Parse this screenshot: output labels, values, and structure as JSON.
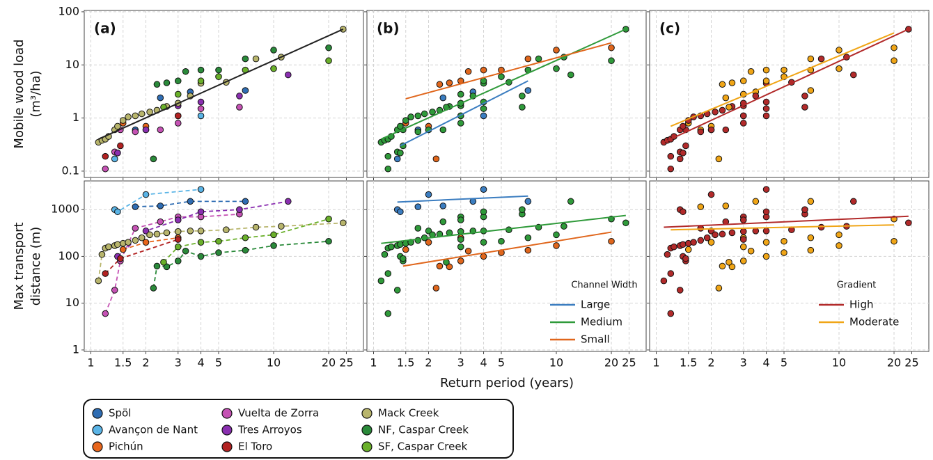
{
  "chart_data": {
    "type": "scatter",
    "x_label": "Return period (years)",
    "log_x": true,
    "xlim": [
      0.92,
      31
    ],
    "xticks": [
      1,
      1.5,
      2,
      3,
      4,
      5,
      10,
      20,
      25
    ],
    "grid": true,
    "rows": [
      {
        "y_label": [
          "Mobile wood load",
          "(m³/ha)"
        ],
        "log_y": true,
        "ylim": [
          0.076,
          106
        ],
        "yticks": [
          0.1,
          1,
          10,
          100
        ]
      },
      {
        "y_label": [
          "Max transport",
          "distance (m)"
        ],
        "log_y": true,
        "ylim": [
          0.93,
          4100
        ],
        "yticks": [
          1,
          10,
          100,
          1000
        ]
      }
    ],
    "series": [
      {
        "name": "Spöl",
        "color": "#2f6db3",
        "width": "Large",
        "gradient": "Moderate",
        "x": [
          1.75,
          2.4,
          3.5,
          7
        ],
        "load": [
          0.6,
          2.4,
          3.1,
          3.3
        ],
        "distance": [
          1150,
          1200,
          1500,
          1500
        ]
      },
      {
        "name": "Avançon de Nant",
        "color": "#5ab4e6",
        "width": "Large",
        "gradient": "High",
        "x": [
          1.35,
          1.4,
          2,
          4
        ],
        "load": [
          0.17,
          0.22,
          0.6,
          1.1
        ],
        "distance": [
          1000,
          900,
          2100,
          2700
        ]
      },
      {
        "name": "Pichún",
        "color": "#e8661c",
        "width": "Small",
        "gradient": "Moderate",
        "x": [
          1.5,
          2,
          3
        ],
        "load": [
          0.8,
          0.7,
          1.1
        ],
        "distance": [
          140,
          200,
          250
        ]
      },
      {
        "name": "Vuelta de Zorra",
        "color": "#c552b4",
        "width": "Medium",
        "gradient": "High",
        "x": [
          1.2,
          1.35,
          1.45,
          1.75,
          2.4,
          3,
          4,
          6.5
        ],
        "load": [
          0.11,
          0.23,
          0.6,
          0.55,
          0.6,
          0.8,
          1.5,
          1.6
        ],
        "distance": [
          6,
          19,
          80,
          400,
          550,
          700,
          700,
          800
        ]
      },
      {
        "name": "Tres Arroyos",
        "color": "#8a2fb0",
        "width": "Medium",
        "gradient": "High",
        "x": [
          1.4,
          2,
          3,
          4,
          6.5,
          12
        ],
        "load": [
          0.22,
          0.6,
          1.7,
          2.0,
          2.6,
          6.5
        ],
        "distance": [
          100,
          350,
          600,
          900,
          1000,
          1500
        ]
      },
      {
        "name": "El Toro",
        "color": "#b22222",
        "width": "Medium",
        "gradient": "High",
        "x": [
          1.2,
          1.45,
          3
        ],
        "load": [
          0.19,
          0.3,
          1.1
        ],
        "distance": [
          43,
          90,
          230
        ]
      },
      {
        "name": "Mack Creek",
        "color": "#b8b56c",
        "width": "Medium",
        "gradient": "High",
        "x": [
          1.1,
          1.15,
          1.2,
          1.25,
          1.35,
          1.4,
          1.5,
          1.6,
          1.75,
          1.9,
          2.1,
          2.3,
          2.6,
          3,
          3.5,
          4,
          5.5,
          8,
          11,
          24
        ],
        "load": [
          0.35,
          0.38,
          0.4,
          0.45,
          0.6,
          0.7,
          0.9,
          1.05,
          1.1,
          1.2,
          1.3,
          1.4,
          1.65,
          1.9,
          2.6,
          4.5,
          4.7,
          13,
          14,
          47
        ],
        "distance": [
          30,
          110,
          150,
          160,
          170,
          180,
          190,
          200,
          220,
          250,
          290,
          300,
          320,
          340,
          350,
          350,
          370,
          420,
          440,
          520
        ]
      },
      {
        "name": "NF, Caspar Creek",
        "color": "#2a8a3a",
        "width": "Small",
        "gradient": "Moderate",
        "x": [
          2.2,
          2.3,
          2.6,
          3,
          3.3,
          4,
          5,
          7,
          10,
          20
        ],
        "load": [
          0.17,
          4.3,
          4.6,
          5,
          7.5,
          8,
          8,
          13,
          19,
          21
        ],
        "distance": [
          21,
          62,
          60,
          80,
          130,
          100,
          120,
          135,
          170,
          210
        ]
      },
      {
        "name": "SF, Caspar Creek",
        "color": "#6ab02a",
        "width": "Medium",
        "gradient": "Moderate",
        "x": [
          2.5,
          3,
          4,
          5,
          7,
          10,
          20
        ],
        "load": [
          1.6,
          2.8,
          5,
          6,
          8,
          8.5,
          12
        ],
        "distance": [
          75,
          160,
          200,
          210,
          250,
          290,
          630
        ]
      }
    ],
    "panels": [
      {
        "label": "(a)",
        "color_by": "site",
        "connect_bottom": true,
        "top_fit": {
          "color": "#222222",
          "x": [
            1.1,
            24
          ],
          "y": [
            0.4,
            47
          ]
        }
      },
      {
        "label": "(b)",
        "color_by": "width",
        "legend_title": "Channel Width",
        "groups": [
          {
            "name": "Large",
            "color": "#3b7dc0",
            "top_fit": {
              "x": [
                1.4,
                7
              ],
              "y": [
                0.3,
                5
              ]
            },
            "bottom_fit": {
              "x": [
                1.35,
                7
              ],
              "y": [
                1450,
                1950
              ]
            }
          },
          {
            "name": "Medium",
            "color": "#2f9a3a",
            "top_fit": {
              "x": [
                1.1,
                24
              ],
              "y": [
                0.4,
                47
              ]
            },
            "bottom_fit": {
              "x": [
                1.1,
                24
              ],
              "y": [
                190,
                750
              ]
            }
          },
          {
            "name": "Small",
            "color": "#e0661c",
            "top_fit": {
              "x": [
                1.5,
                20
              ],
              "y": [
                2.3,
                26
              ]
            },
            "bottom_fit": {
              "x": [
                1.45,
                20
              ],
              "y": [
                62,
                330
              ]
            }
          }
        ]
      },
      {
        "label": "(c)",
        "color_by": "gradient",
        "legend_title": "Gradient",
        "groups": [
          {
            "name": "High",
            "color": "#b22a2a",
            "top_fit": {
              "x": [
                1.1,
                24
              ],
              "y": [
                0.35,
                47
              ]
            },
            "bottom_fit": {
              "x": [
                1.1,
                24
              ],
              "y": [
                420,
                720
              ]
            }
          },
          {
            "name": "Moderate",
            "color": "#f0a516",
            "top_fit": {
              "x": [
                1.2,
                20
              ],
              "y": [
                0.7,
                40
              ]
            },
            "bottom_fit": {
              "x": [
                1.2,
                20
              ],
              "y": [
                370,
                470
              ]
            }
          }
        ]
      }
    ]
  }
}
